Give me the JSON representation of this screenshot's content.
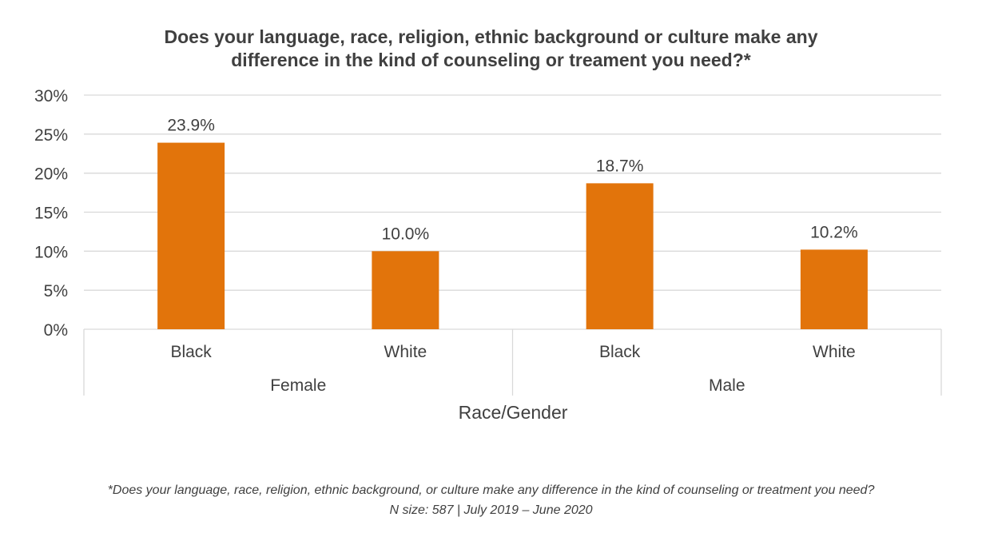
{
  "chart_data": {
    "type": "bar",
    "title_lines": [
      "Does your language, race, religion, ethnic background or culture make any",
      "difference in the kind of counseling or treament you need?*"
    ],
    "xlabel": "Race/Gender",
    "ylabel": "",
    "ylim": [
      0,
      30
    ],
    "yticks": [
      "0%",
      "5%",
      "10%",
      "15%",
      "20%",
      "25%",
      "30%"
    ],
    "groups": [
      {
        "label": "Female",
        "categories": [
          "Black",
          "White"
        ],
        "values": [
          23.9,
          10.0
        ],
        "data_labels": [
          "23.9%",
          "10.0%"
        ]
      },
      {
        "label": "Male",
        "categories": [
          "Black",
          "White"
        ],
        "values": [
          18.7,
          10.2
        ],
        "data_labels": [
          "18.7%",
          "10.2%"
        ]
      }
    ],
    "bar_color": "#E2740B",
    "grid": true,
    "legend": "none"
  },
  "footnote": {
    "line1": "*Does your language, race, religion, ethnic background, or culture make any difference in the kind of counseling or treatment you need?",
    "line2": "N size: 587 | July 2019 – June 2020"
  }
}
